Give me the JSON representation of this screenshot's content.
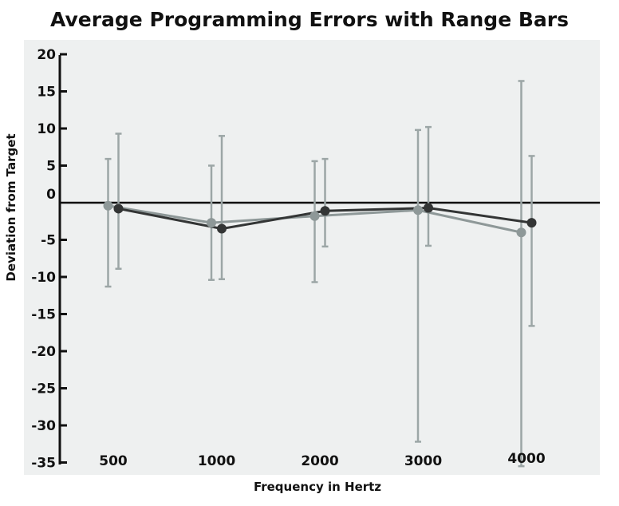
{
  "chart_data": {
    "type": "line",
    "title": "Average Programming Errors with Range Bars",
    "xlabel": "Frequency in Hertz",
    "ylabel": "Deviation from Target",
    "categories": [
      "500",
      "1000",
      "2000",
      "3000",
      "4000"
    ],
    "ylim": [
      -35,
      20
    ],
    "yticks": [
      "20",
      "15",
      "10",
      "5",
      "0",
      "-5",
      "-10",
      "-15",
      "-20",
      "-25",
      "-30",
      "-35"
    ],
    "grid": false,
    "reference_line": 0,
    "series": [
      {
        "color": "#8e9898",
        "values": [
          -0.4,
          -2.7,
          -1.8,
          -1.0,
          -4.0
        ],
        "range_high": [
          5.9,
          5.0,
          5.6,
          9.8,
          16.4
        ],
        "range_low": [
          -11.3,
          -10.4,
          -10.7,
          -32.2,
          -35.5
        ]
      },
      {
        "color": "#333535",
        "values": [
          -0.8,
          -3.5,
          -1.1,
          -0.7,
          -2.7
        ],
        "range_high": [
          9.3,
          9.0,
          5.9,
          10.2,
          6.3
        ],
        "range_low": [
          -8.9,
          -10.3,
          -5.9,
          -5.8,
          -16.6
        ]
      }
    ],
    "errorbar_color": "#9ca6a6",
    "background_color": "#eef0f0"
  }
}
